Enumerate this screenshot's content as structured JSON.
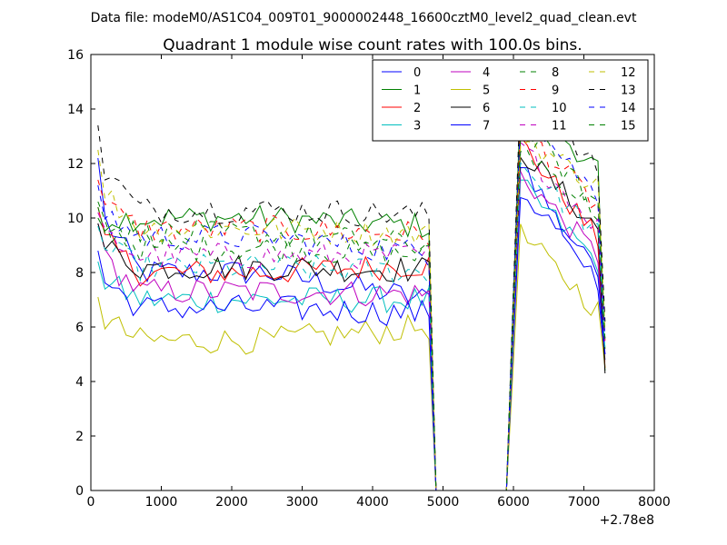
{
  "suptitle": "Data file: modeM0/AS1C04_009T01_9000002448_16600cztM0_level2_quad_clean.evt",
  "chart_data": {
    "type": "line",
    "title": "Quadrant 1 module wise count rates with 100.0s bins.",
    "xlabel": "",
    "ylabel": "",
    "x_offset_label": "+2.78e8",
    "xlim": [
      0,
      8000
    ],
    "ylim": [
      0,
      16
    ],
    "xticks": [
      0,
      1000,
      2000,
      3000,
      4000,
      5000,
      6000,
      7000,
      8000
    ],
    "xtick_labels": [
      "0",
      "1000",
      "2000",
      "3000",
      "4000",
      "5000",
      "6000",
      "7000",
      "8000"
    ],
    "yticks": [
      0,
      2,
      4,
      6,
      8,
      10,
      12,
      14,
      16
    ],
    "ytick_labels": [
      "0",
      "2",
      "4",
      "6",
      "8",
      "10",
      "12",
      "14",
      "16"
    ],
    "grid": false,
    "legend_position": "top-right",
    "legend_columns": 4,
    "x_segment1": [
      100,
      200,
      300,
      400,
      500,
      600,
      700,
      800,
      900,
      1000,
      1100,
      1200,
      1300,
      1400,
      1500,
      1600,
      1700,
      1800,
      1900,
      2000,
      2100,
      2200,
      2300,
      2400,
      2500,
      2600,
      2700,
      2800,
      2900,
      3000,
      3100,
      3200,
      3300,
      3400,
      3500,
      3600,
      3700,
      3800,
      3900,
      4000,
      4100,
      4200,
      4300,
      4400,
      4500,
      4600,
      4700,
      4800
    ],
    "x_gap": [
      4900,
      5000,
      5100,
      5200,
      5300,
      5400,
      5500,
      5600,
      5700,
      5800,
      5900
    ],
    "x_segment2": [
      6000,
      6100,
      6200,
      6300,
      6400,
      6500,
      6600,
      6700,
      6800,
      6900,
      7000,
      7100,
      7200,
      7300
    ],
    "gap_value": 0,
    "series": [
      {
        "name": "0",
        "color": "#0000ff",
        "dash": "solid",
        "seg1_base": 8.0,
        "seg1_start": 12.2,
        "seg1_end": 7.0,
        "seg2_peak": 12.2,
        "seg2_end": 7.4,
        "final": 4.8
      },
      {
        "name": "1",
        "color": "#008000",
        "dash": "solid",
        "seg1_base": 10.0,
        "seg1_start": 10.0,
        "seg1_end": 9.7,
        "seg2_peak": 14.4,
        "seg2_end": 11.8,
        "final": 4.4
      },
      {
        "name": "2",
        "color": "#ff0000",
        "dash": "solid",
        "seg1_base": 8.0,
        "seg1_start": 10.4,
        "seg1_end": 8.3,
        "seg2_peak": 12.8,
        "seg2_end": 9.2,
        "final": 4.5
      },
      {
        "name": "3",
        "color": "#00bfbf",
        "dash": "solid",
        "seg1_base": 7.0,
        "seg1_start": 8.4,
        "seg1_end": 7.0,
        "seg2_peak": 11.2,
        "seg2_end": 8.4,
        "final": 5.0
      },
      {
        "name": "4",
        "color": "#bf00bf",
        "dash": "solid",
        "seg1_base": 7.3,
        "seg1_start": 9.8,
        "seg1_end": 7.2,
        "seg2_peak": 11.6,
        "seg2_end": 8.6,
        "final": 5.0
      },
      {
        "name": "5",
        "color": "#bfbf00",
        "dash": "solid",
        "seg1_base": 5.5,
        "seg1_start": 7.1,
        "seg1_end": 6.0,
        "seg2_peak": 9.4,
        "seg2_end": 6.6,
        "final": 4.5
      },
      {
        "name": "6",
        "color": "#000000",
        "dash": "solid",
        "seg1_base": 8.2,
        "seg1_start": 9.8,
        "seg1_end": 8.1,
        "seg2_peak": 12.5,
        "seg2_end": 9.6,
        "final": 4.3
      },
      {
        "name": "7",
        "color": "#0000ff",
        "dash": "solid",
        "seg1_base": 6.7,
        "seg1_start": 8.8,
        "seg1_end": 6.5,
        "seg2_peak": 11.0,
        "seg2_end": 8.0,
        "final": 5.0
      },
      {
        "name": "8",
        "color": "#008000",
        "dash": "dashed",
        "seg1_base": 8.9,
        "seg1_start": 10.6,
        "seg1_end": 8.6,
        "seg2_peak": 12.6,
        "seg2_end": 10.2,
        "final": 5.2
      },
      {
        "name": "9",
        "color": "#ff0000",
        "dash": "dashed",
        "seg1_base": 9.6,
        "seg1_start": 11.4,
        "seg1_end": 9.4,
        "seg2_peak": 13.4,
        "seg2_end": 10.4,
        "final": 5.5
      },
      {
        "name": "10",
        "color": "#00bfbf",
        "dash": "dashed",
        "seg1_base": 8.2,
        "seg1_start": 9.7,
        "seg1_end": 8.0,
        "seg2_peak": 12.0,
        "seg2_end": 9.4,
        "final": 5.1
      },
      {
        "name": "11",
        "color": "#bf00bf",
        "dash": "dashed",
        "seg1_base": 8.6,
        "seg1_start": 10.2,
        "seg1_end": 8.6,
        "seg2_peak": 12.6,
        "seg2_end": 9.7,
        "final": 5.3
      },
      {
        "name": "12",
        "color": "#bfbf00",
        "dash": "dashed",
        "seg1_base": 9.6,
        "seg1_start": 12.5,
        "seg1_end": 9.4,
        "seg2_peak": 13.0,
        "seg2_end": 11.2,
        "final": 5.8
      },
      {
        "name": "13",
        "color": "#000000",
        "dash": "dashed",
        "seg1_base": 10.3,
        "seg1_start": 13.4,
        "seg1_end": 10.1,
        "seg2_peak": 14.8,
        "seg2_end": 11.7,
        "final": 6.2
      },
      {
        "name": "14",
        "color": "#0000ff",
        "dash": "dashed",
        "seg1_base": 9.3,
        "seg1_start": 11.2,
        "seg1_end": 8.7,
        "seg2_peak": 14.0,
        "seg2_end": 10.8,
        "final": 5.6
      },
      {
        "name": "15",
        "color": "#008000",
        "dash": "dashed",
        "seg1_base": 9.4,
        "seg1_start": 10.4,
        "seg1_end": 9.0,
        "seg2_peak": 13.4,
        "seg2_end": 10.5,
        "final": 5.5
      }
    ]
  }
}
